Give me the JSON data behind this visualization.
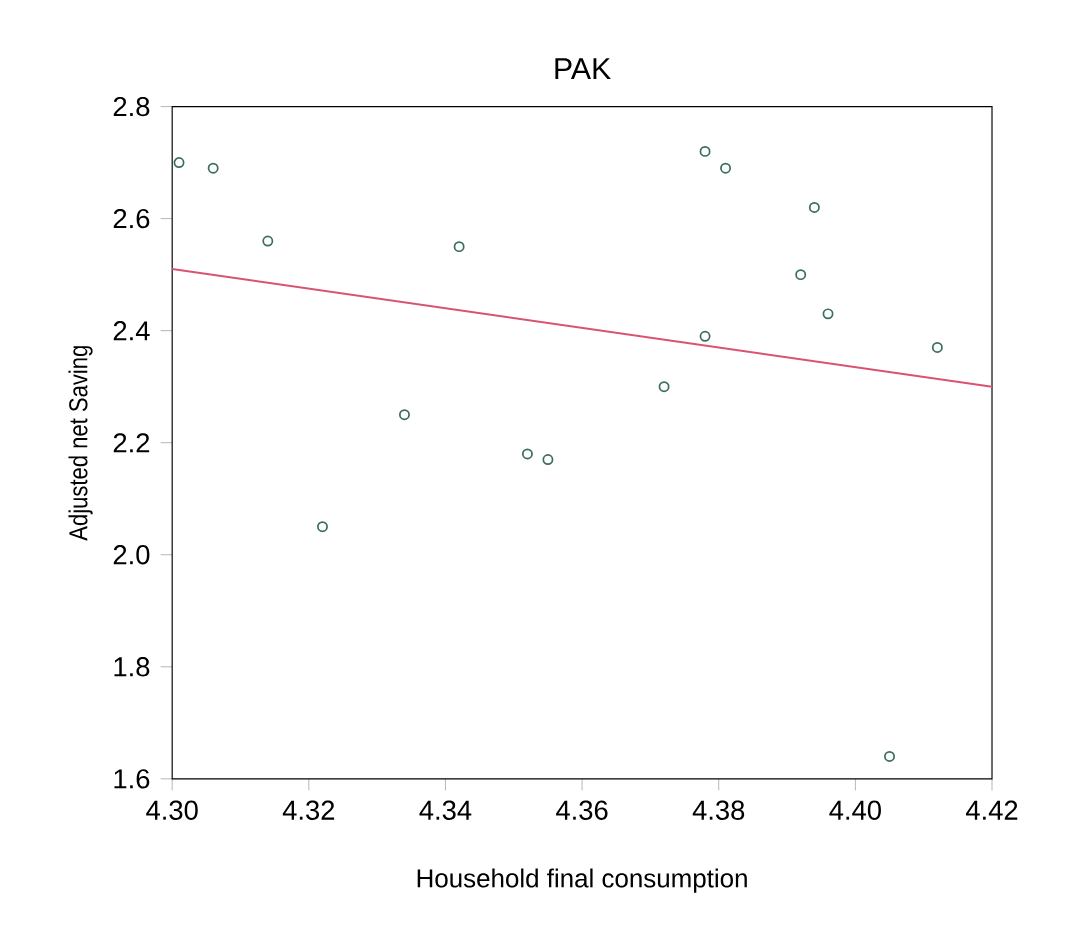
{
  "chart_data": {
    "type": "scatter",
    "title": "PAK",
    "xlabel": "Household final consumption",
    "ylabel": "Adjusted net Saving",
    "xlim": [
      4.3,
      4.42
    ],
    "ylim": [
      1.6,
      2.8
    ],
    "xticks": [
      {
        "value": 4.3,
        "label": "4.30"
      },
      4.32,
      4.34,
      4.36,
      4.38,
      {
        "value": 4.4,
        "label": "4.40"
      },
      4.42
    ],
    "yticks": [
      1.6,
      1.8,
      {
        "value": 2.0,
        "label": "2.0"
      },
      2.2,
      2.4,
      2.6,
      2.8
    ],
    "marker": "circle",
    "grid": false,
    "series": [
      {
        "color": "#3a6e5e",
        "x": [
          4.301,
          4.306,
          4.314,
          4.322,
          4.334,
          4.342,
          4.352,
          4.355,
          4.372,
          4.378,
          4.378,
          4.381,
          4.392,
          4.394,
          4.396,
          4.405,
          4.412
        ],
        "values": [
          2.7,
          2.69,
          2.56,
          2.05,
          2.25,
          2.55,
          2.18,
          2.17,
          2.3,
          2.39,
          2.72,
          2.69,
          2.5,
          2.62,
          2.43,
          1.64,
          2.37
        ]
      },
      {
        "type": "line",
        "color": "#d9536f",
        "marker": "none",
        "x": [
          4.3,
          4.42
        ],
        "values": [
          2.51,
          2.3
        ]
      }
    ]
  }
}
